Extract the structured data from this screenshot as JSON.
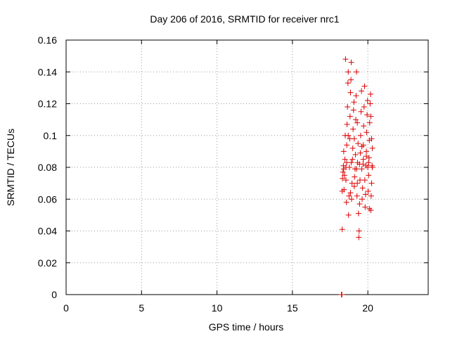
{
  "chart_data": {
    "type": "scatter",
    "title": "Day 206 of 2016, SRMTID for receiver nrc1",
    "xlabel": "GPS time / hours",
    "ylabel": "SRMTID / TECUs",
    "xlim": [
      0,
      24
    ],
    "ylim": [
      0,
      0.16
    ],
    "xticks": [
      0,
      5,
      10,
      15,
      20
    ],
    "xtick_labels": [
      "0",
      "5",
      "10",
      "15",
      "20"
    ],
    "yticks": [
      0,
      0.02,
      0.04,
      0.06,
      0.08,
      0.1,
      0.12,
      0.14,
      0.16
    ],
    "ytick_labels": [
      "0",
      "0.02",
      "0.04",
      "0.06",
      "0.08",
      "0.1",
      "0.12",
      "0.14",
      "0.16"
    ],
    "grid": true,
    "marker": "plus",
    "series": [
      {
        "color": "#dd0000",
        "points": [
          [
            18.25,
            0.0
          ],
          [
            18.28,
            0.0
          ],
          [
            18.3,
            0.041
          ],
          [
            18.3,
            0.065
          ],
          [
            18.32,
            0.073
          ],
          [
            18.35,
            0.077
          ],
          [
            18.38,
            0.081
          ],
          [
            18.4,
            0.09
          ],
          [
            18.42,
            0.066
          ],
          [
            18.45,
            0.075
          ],
          [
            18.48,
            0.085
          ],
          [
            18.5,
            0.1
          ],
          [
            18.52,
            0.148
          ],
          [
            18.55,
            0.072
          ],
          [
            18.58,
            0.058
          ],
          [
            18.6,
            0.094
          ],
          [
            18.62,
            0.107
          ],
          [
            18.65,
            0.118
          ],
          [
            18.68,
            0.133
          ],
          [
            18.7,
            0.14
          ],
          [
            18.72,
            0.05
          ],
          [
            18.75,
            0.062
          ],
          [
            18.78,
            0.08
          ],
          [
            18.8,
            0.098
          ],
          [
            18.82,
            0.112
          ],
          [
            18.85,
            0.127
          ],
          [
            18.88,
            0.135
          ],
          [
            18.9,
            0.146
          ],
          [
            18.92,
            0.06
          ],
          [
            18.95,
            0.07
          ],
          [
            18.98,
            0.085
          ],
          [
            19.0,
            0.092
          ],
          [
            19.02,
            0.104
          ],
          [
            19.05,
            0.116
          ],
          [
            19.08,
            0.121
          ],
          [
            19.1,
            0.068
          ],
          [
            19.12,
            0.074
          ],
          [
            19.15,
            0.079
          ],
          [
            19.18,
            0.088
          ],
          [
            19.2,
            0.11
          ],
          [
            19.22,
            0.125
          ],
          [
            19.25,
            0.14
          ],
          [
            19.28,
            0.062
          ],
          [
            19.3,
            0.07
          ],
          [
            19.32,
            0.083
          ],
          [
            19.35,
            0.095
          ],
          [
            19.38,
            0.051
          ],
          [
            19.4,
            0.036
          ],
          [
            19.42,
            0.04
          ],
          [
            19.45,
            0.057
          ],
          [
            19.48,
            0.072
          ],
          [
            19.5,
            0.089
          ],
          [
            19.52,
            0.1
          ],
          [
            19.55,
            0.115
          ],
          [
            19.58,
            0.128
          ],
          [
            19.6,
            0.079
          ],
          [
            19.62,
            0.06
          ],
          [
            19.65,
            0.067
          ],
          [
            19.68,
            0.082
          ],
          [
            19.7,
            0.094
          ],
          [
            19.72,
            0.106
          ],
          [
            19.75,
            0.118
          ],
          [
            19.78,
            0.131
          ],
          [
            19.8,
            0.072
          ],
          [
            19.82,
            0.055
          ],
          [
            19.85,
            0.063
          ],
          [
            19.88,
            0.081
          ],
          [
            19.9,
            0.09
          ],
          [
            19.92,
            0.102
          ],
          [
            19.95,
            0.113
          ],
          [
            19.98,
            0.122
          ],
          [
            20.0,
            0.08
          ],
          [
            20.02,
            0.065
          ],
          [
            20.05,
            0.075
          ],
          [
            20.08,
            0.086
          ],
          [
            20.1,
            0.097
          ],
          [
            20.12,
            0.108
          ],
          [
            20.15,
            0.12
          ],
          [
            20.18,
            0.126
          ],
          [
            20.2,
            0.053
          ],
          [
            20.22,
            0.062
          ],
          [
            20.25,
            0.07
          ],
          [
            20.28,
            0.081
          ],
          [
            20.3,
            0.08
          ],
          [
            20.3,
            0.092
          ],
          [
            20.25,
            0.098
          ],
          [
            20.2,
            0.112
          ],
          [
            20.1,
            0.054
          ],
          [
            19.7,
            0.085
          ],
          [
            19.3,
            0.108
          ],
          [
            18.9,
            0.083
          ],
          [
            18.6,
            0.083
          ],
          [
            18.4,
            0.079
          ],
          [
            18.7,
            0.1
          ],
          [
            19.1,
            0.098
          ],
          [
            19.6,
            0.093
          ],
          [
            19.9,
            0.087
          ],
          [
            20.05,
            0.083
          ],
          [
            18.55,
            0.08
          ],
          [
            18.85,
            0.064
          ],
          [
            19.25,
            0.079
          ],
          [
            19.45,
            0.082
          ]
        ]
      }
    ]
  }
}
